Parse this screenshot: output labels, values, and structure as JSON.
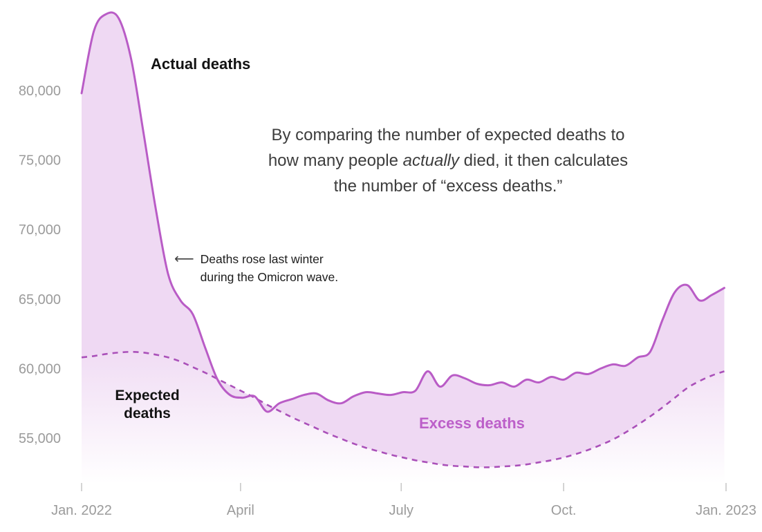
{
  "chart_data": {
    "type": "area",
    "title": "",
    "x_total_weeks": 52.14,
    "x_ticks": [
      {
        "label": "Jan. 2022",
        "week": 0
      },
      {
        "label": "April",
        "week": 12.86
      },
      {
        "label": "July",
        "week": 25.86
      },
      {
        "label": "Oct.",
        "week": 39
      },
      {
        "label": "Jan. 2023",
        "week": 52.14
      }
    ],
    "y_ticks": [
      {
        "label": "80,000",
        "value": 80000
      },
      {
        "label": "75,000",
        "value": 75000
      },
      {
        "label": "70,000",
        "value": 70000
      },
      {
        "label": "65,000",
        "value": 65000
      },
      {
        "label": "60,000",
        "value": 60000
      },
      {
        "label": "55,000",
        "value": 55000
      }
    ],
    "ylim": [
      52500,
      86200
    ],
    "grid": false,
    "legend_position": "annotated-inline",
    "series": [
      {
        "name": "Actual deaths",
        "style": "solid",
        "color": "#b95cc6",
        "values": [
          79800,
          84300,
          85500,
          85200,
          82300,
          77000,
          71500,
          66800,
          64900,
          63900,
          61500,
          59200,
          58100,
          57900,
          58000,
          56900,
          57500,
          57800,
          58100,
          58200,
          57700,
          57500,
          58000,
          58300,
          58200,
          58100,
          58300,
          58400,
          59800,
          58700,
          59500,
          59300,
          58900,
          58800,
          59000,
          58700,
          59200,
          59000,
          59400,
          59200,
          59700,
          59600,
          60000,
          60300,
          60200,
          60800,
          61200,
          63500,
          65500,
          66000,
          64900,
          65300,
          65800
        ]
      },
      {
        "name": "Expected deaths",
        "style": "dashed",
        "color": "#aa50b9",
        "values": [
          60800,
          60900,
          61050,
          61150,
          61200,
          61150,
          61000,
          60800,
          60500,
          60100,
          59700,
          59250,
          58800,
          58350,
          57900,
          57400,
          56950,
          56500,
          56100,
          55700,
          55300,
          54950,
          54600,
          54300,
          54050,
          53800,
          53600,
          53400,
          53250,
          53100,
          53000,
          52950,
          52900,
          52900,
          52950,
          53000,
          53100,
          53250,
          53400,
          53600,
          53850,
          54150,
          54500,
          54900,
          55400,
          55950,
          56550,
          57200,
          57900,
          58600,
          59100,
          59500,
          59800
        ]
      }
    ],
    "band": {
      "label": "Excess deaths",
      "fill": "#efd9f3",
      "label_color": "#bc5fc9"
    },
    "axis_text_color": "#9b9b9b",
    "tick_color": "#c9c9c9"
  },
  "annotations": {
    "actual_label": "Actual deaths",
    "expected_label": "Expected deaths",
    "excess_label": "Excess deaths",
    "omicron": {
      "arrow": "⟵",
      "line1": "Deaths rose last winter",
      "line2": "during the Omicron wave."
    },
    "explainer": {
      "line1": "By comparing the number of expected deaths to",
      "line2_pre": "how many people ",
      "line2_italic": "actually",
      "line2_post": " died, it then calculates",
      "line3": "the number of “excess deaths.”"
    }
  }
}
